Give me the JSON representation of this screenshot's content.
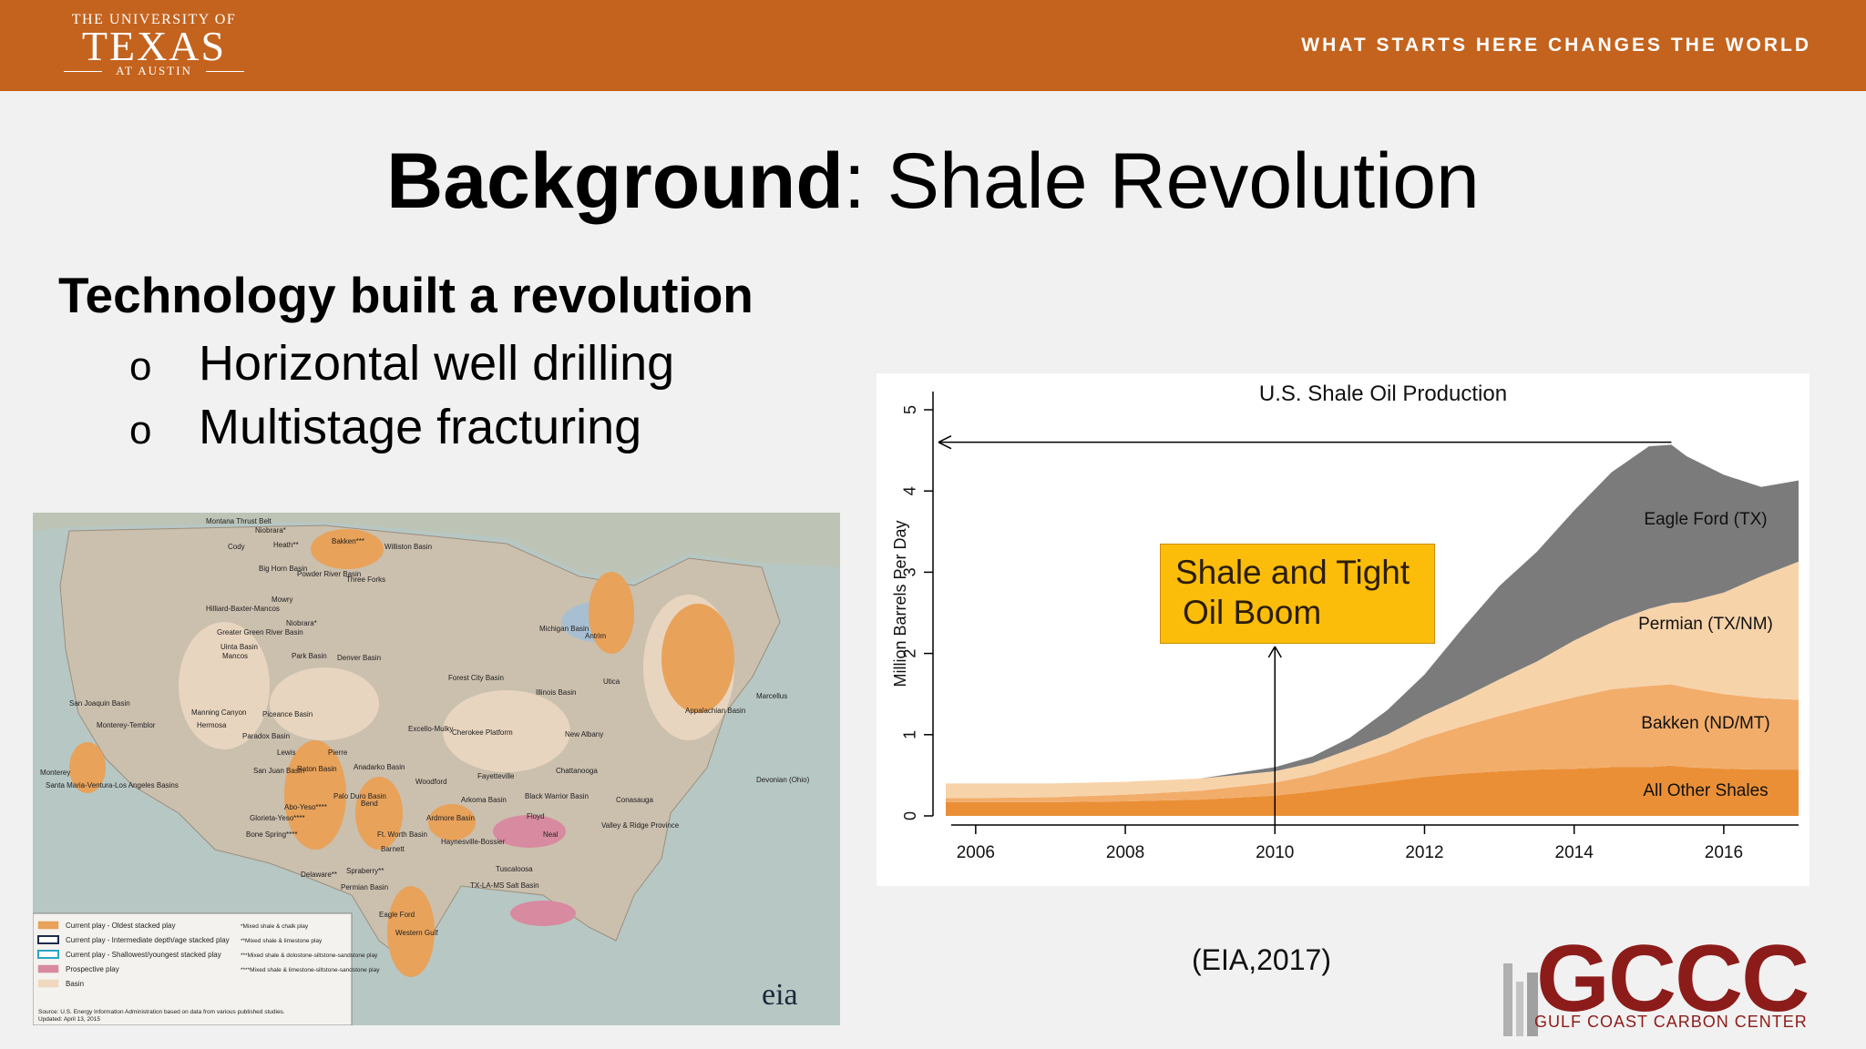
{
  "header": {
    "logo_top": "THE UNIVERSITY OF",
    "logo_main": "TEXAS",
    "logo_sub": "AT AUSTIN",
    "tagline": "WHAT STARTS HERE CHANGES THE WORLD",
    "bg_color": "#c4631e"
  },
  "slide": {
    "title_bold": "Background",
    "title_rest": ": Shale Revolution",
    "subtitle": "Technology built a revolution",
    "bullets": [
      "Horizontal well drilling",
      "Multistage fracturing"
    ],
    "bullet_marker": "o"
  },
  "map": {
    "labels": [
      "Montana Thrust Belt",
      "Niobrara*",
      "Bakken***",
      "Cody",
      "Heath**",
      "Williston Basin",
      "Big Horn Basin",
      "Powder River Basin",
      "Three Forks",
      "Hilliard-Baxter-Mancos",
      "Mowry",
      "Niobrara*",
      "Greater Green River Basin",
      "Uinta Basin",
      "Mancos",
      "Park Basin",
      "Denver Basin",
      "San Joaquin Basin",
      "Monterey-Temblor",
      "Manning Canyon",
      "Hermosa",
      "Piceance Basin",
      "Paradox Basin",
      "Lewis",
      "Monterey",
      "Santa Maria-Ventura-Los Angeles Basins",
      "San Juan Basin",
      "Raton Basin",
      "Pierre",
      "Anadarko Basin",
      "Palo Duro Basin",
      "Bend",
      "Abo-Yeso****",
      "Glorieta-Yeso****",
      "Bone Spring****",
      "Ft. Worth Basin",
      "Barnett",
      "Delaware**",
      "Spraberry**",
      "Permian Basin",
      "Forest City Basin",
      "Excello-Mulky",
      "Cherokee Platform",
      "Woodford",
      "Fayetteville",
      "Arkoma Basin",
      "Ardmore Basin",
      "Haynesville-Bossier",
      "Eagle Ford",
      "Western Gulf",
      "Illinois Basin",
      "New Albany",
      "Chattanooga",
      "Black Warrior Basin",
      "Floyd",
      "Neal",
      "Conasauga",
      "Valley & Ridge Province",
      "Tuscaloosa",
      "TX-LA-MS Salt Basin",
      "Michigan Basin",
      "Antrim",
      "Utica",
      "Marcellus",
      "Appalachian Basin",
      "Devonian (Ohio)"
    ],
    "legend": [
      {
        "label": "Current play - Oldest stacked play",
        "color": "#e8a25a"
      },
      {
        "label": "Current play - Intermediate depth/age stacked play",
        "color": "#1d2c4a"
      },
      {
        "label": "Current play - Shallowest/youngest stacked play",
        "color": "#27a6c6"
      },
      {
        "label": "Prospective play",
        "color": "#d88aa0"
      },
      {
        "label": "Basin",
        "color": "#f0d8c0"
      }
    ],
    "legend_notes": [
      "*Mixed shale & chalk play",
      "**Mixed shale & limestone play",
      "***Mixed shale & dolostone-siltstone-sandstone play",
      "****Mixed shale & limestone-siltstone-sandstone play"
    ],
    "source": "Source: U.S. Energy Information Administration based on data from various published studies.",
    "updated": "Updated: April 13, 2015",
    "eia_logo": "eia"
  },
  "chart_data": {
    "type": "area",
    "title": "U.S. Shale Oil Production",
    "xlabel": "",
    "ylabel": "Million Barrels Per Day",
    "xlim": [
      2005.6,
      2017.0
    ],
    "ylim": [
      0,
      5
    ],
    "xticks": [
      2006,
      2008,
      2010,
      2012,
      2014,
      2016
    ],
    "yticks": [
      0,
      1,
      2,
      3,
      4,
      5
    ],
    "stacked": true,
    "x": [
      2005.6,
      2006.0,
      2007.0,
      2008.0,
      2009.0,
      2010.0,
      2010.5,
      2011.0,
      2011.5,
      2012.0,
      2012.5,
      2013.0,
      2013.5,
      2014.0,
      2014.5,
      2015.0,
      2015.3,
      2015.5,
      2016.0,
      2016.5,
      2017.0
    ],
    "series": [
      {
        "name": "All Other Shales",
        "color": "#ea8f36",
        "values": [
          0.17,
          0.17,
          0.17,
          0.18,
          0.2,
          0.25,
          0.3,
          0.36,
          0.42,
          0.48,
          0.52,
          0.55,
          0.57,
          0.58,
          0.6,
          0.6,
          0.62,
          0.6,
          0.58,
          0.57,
          0.57
        ]
      },
      {
        "name": "Bakken (ND/MT)",
        "color": "#f2ad6b",
        "values": [
          0.05,
          0.05,
          0.06,
          0.08,
          0.11,
          0.16,
          0.2,
          0.28,
          0.36,
          0.48,
          0.58,
          0.68,
          0.78,
          0.88,
          0.96,
          1.0,
          1.0,
          0.98,
          0.92,
          0.88,
          0.86
        ]
      },
      {
        "name": "Permian (TX/NM)",
        "color": "#f7d3aa",
        "values": [
          0.18,
          0.18,
          0.17,
          0.16,
          0.15,
          0.14,
          0.15,
          0.18,
          0.22,
          0.28,
          0.35,
          0.45,
          0.55,
          0.7,
          0.82,
          0.95,
          1.0,
          1.05,
          1.25,
          1.5,
          1.7
        ]
      },
      {
        "name": "Eagle Ford (TX)",
        "color": "#7b7b7b",
        "values": [
          0.0,
          0.0,
          0.0,
          0.0,
          0.0,
          0.05,
          0.08,
          0.14,
          0.3,
          0.5,
          0.85,
          1.15,
          1.35,
          1.6,
          1.85,
          2.0,
          1.95,
          1.8,
          1.45,
          1.1,
          1.0
        ]
      }
    ],
    "annotations": [
      {
        "text": "Shale and Tight",
        "line2": "Oil Boom",
        "arrow_x": 2010.0
      },
      {
        "type": "horizontal-arrow",
        "y": 4.6,
        "from_x": 2015.3,
        "to_x": 2005.6
      }
    ],
    "legend": "direct labels on areas"
  },
  "callout": {
    "line1": "Shale and Tight",
    "line2": "Oil Boom",
    "bg_color": "#fbbd0a"
  },
  "citation": "(EIA,2017)",
  "gccc": {
    "letters": "GCCC",
    "name": "GULF COAST CARBON CENTER",
    "color": "#8c1c1a"
  }
}
